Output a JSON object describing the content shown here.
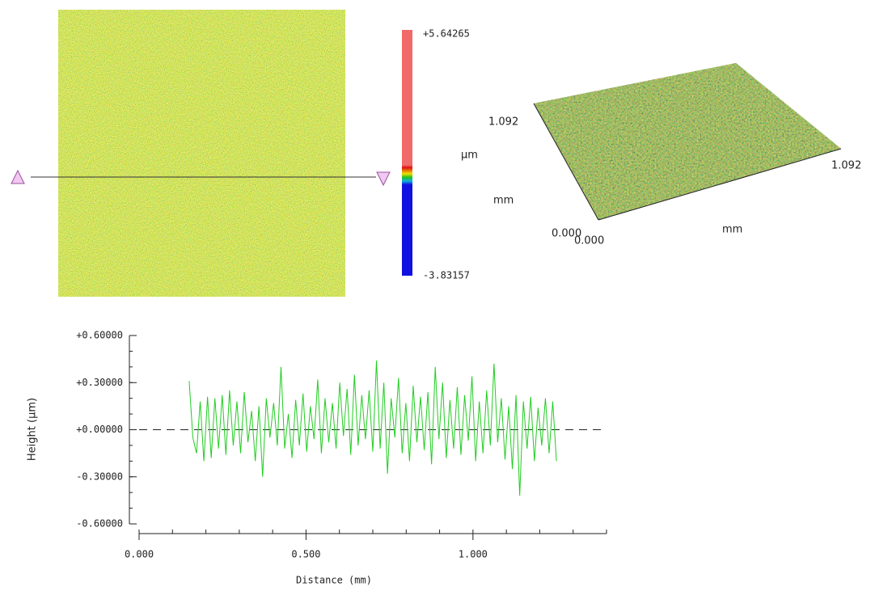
{
  "surface_map": {
    "scale_max": "+5.64265",
    "scale_min": "-3.83157",
    "scale_unit": "μm",
    "lateral_unit": "mm"
  },
  "view_3d": {
    "y_max": "1.092",
    "x_max": "1.092",
    "y_min": "0.000",
    "x_min": "0.000",
    "x_unit": "mm"
  },
  "chart_data": {
    "type": "line",
    "ylabel": "Height (μm)",
    "xlabel": "Distance (mm)",
    "color": "#22cc22",
    "xlim": [
      0,
      1.4
    ],
    "ylim": [
      -0.6,
      0.6
    ],
    "xticks": [
      {
        "value": 0,
        "label": "0.000"
      },
      {
        "value": 0.5,
        "label": "0.500"
      },
      {
        "value": 1,
        "label": "1.000"
      }
    ],
    "yticks": [
      {
        "value": 0.6,
        "label": "+0.60000"
      },
      {
        "value": 0.3,
        "label": "+0.30000"
      },
      {
        "value": 0,
        "label": "+0.00000"
      },
      {
        "value": -0.3,
        "label": "-0.30000"
      },
      {
        "value": -0.6,
        "label": "-0.60000"
      }
    ],
    "x": [
      0.15,
      0.161,
      0.172,
      0.183,
      0.194,
      0.205,
      0.216,
      0.227,
      0.238,
      0.249,
      0.26,
      0.271,
      0.282,
      0.293,
      0.304,
      0.315,
      0.326,
      0.337,
      0.348,
      0.359,
      0.37,
      0.381,
      0.392,
      0.403,
      0.414,
      0.425,
      0.436,
      0.447,
      0.458,
      0.469,
      0.48,
      0.491,
      0.502,
      0.513,
      0.524,
      0.535,
      0.546,
      0.557,
      0.568,
      0.579,
      0.59,
      0.601,
      0.612,
      0.623,
      0.634,
      0.645,
      0.656,
      0.667,
      0.678,
      0.689,
      0.7,
      0.711,
      0.722,
      0.733,
      0.744,
      0.755,
      0.766,
      0.777,
      0.788,
      0.799,
      0.81,
      0.821,
      0.832,
      0.843,
      0.854,
      0.865,
      0.876,
      0.887,
      0.898,
      0.909,
      0.92,
      0.931,
      0.942,
      0.953,
      0.964,
      0.975,
      0.986,
      0.997,
      1.008,
      1.019,
      1.03,
      1.041,
      1.052,
      1.063,
      1.074,
      1.085,
      1.096,
      1.107,
      1.118,
      1.129,
      1.14,
      1.151,
      1.162,
      1.173,
      1.184,
      1.195,
      1.206,
      1.217,
      1.228,
      1.239,
      1.25
    ],
    "values": [
      0.31,
      -0.05,
      -0.15,
      0.18,
      -0.2,
      0.21,
      -0.18,
      0.2,
      -0.12,
      0.22,
      -0.16,
      0.25,
      -0.1,
      0.18,
      -0.15,
      0.24,
      -0.08,
      0.12,
      -0.2,
      0.15,
      -0.3,
      0.2,
      -0.05,
      0.17,
      -0.1,
      0.4,
      -0.12,
      0.1,
      -0.18,
      0.19,
      -0.1,
      0.23,
      -0.14,
      0.15,
      -0.06,
      0.32,
      -0.15,
      0.2,
      -0.08,
      0.17,
      -0.12,
      0.3,
      -0.04,
      0.26,
      -0.16,
      0.35,
      -0.1,
      0.22,
      -0.06,
      0.25,
      -0.14,
      0.44,
      -0.12,
      0.3,
      -0.28,
      0.2,
      -0.05,
      0.33,
      -0.15,
      0.17,
      -0.2,
      0.28,
      -0.08,
      0.21,
      -0.13,
      0.24,
      -0.22,
      0.4,
      -0.06,
      0.3,
      -0.18,
      0.19,
      -0.12,
      0.27,
      -0.16,
      0.22,
      -0.07,
      0.34,
      -0.2,
      0.18,
      -0.15,
      0.25,
      -0.1,
      0.42,
      -0.08,
      0.2,
      -0.19,
      0.15,
      -0.25,
      0.22,
      -0.42,
      0.18,
      -0.12,
      0.21,
      -0.2,
      0.14,
      -0.1,
      0.2,
      -0.15,
      0.18,
      -0.2
    ]
  }
}
